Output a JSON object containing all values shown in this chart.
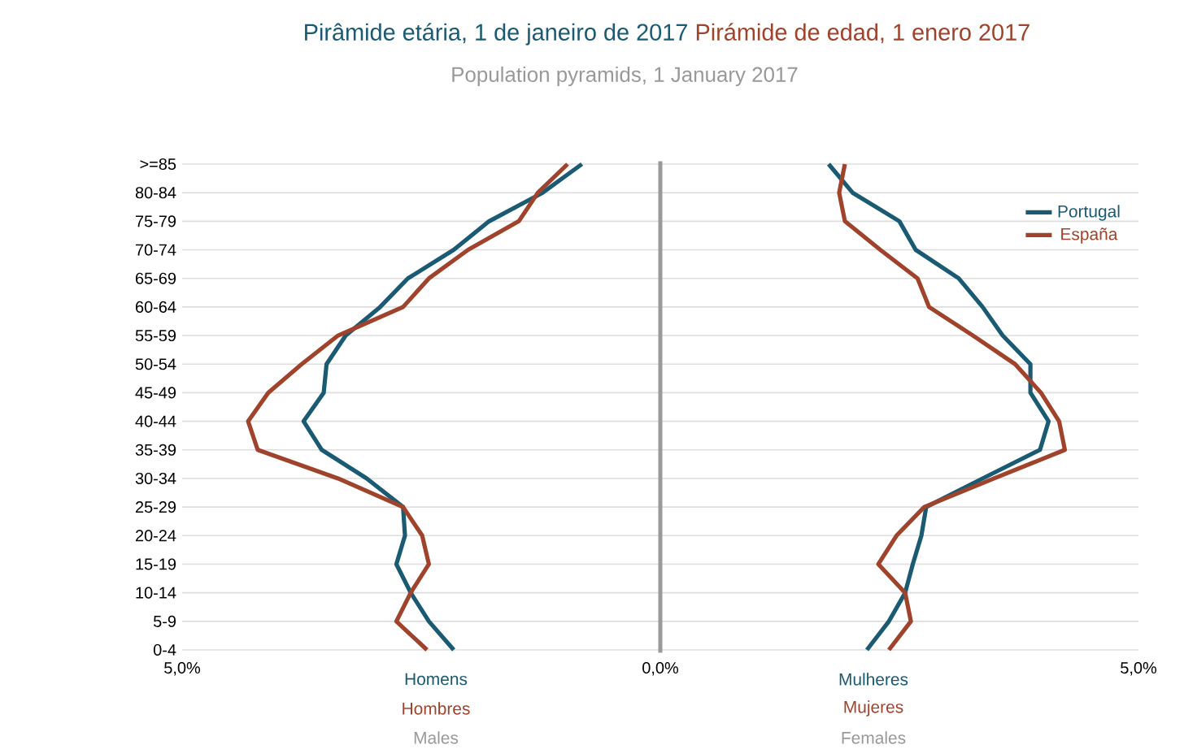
{
  "chart_data": {
    "type": "line",
    "orientation": "horizontal",
    "title": "Pirâmide etária, 1 de janeiro de 2017",
    "subtitle": "Population pyramids, 1 January 2017",
    "categories": [
      ">=85",
      "80-84",
      "75-79",
      "70-74",
      "65-69",
      "60-64",
      "55-59",
      "50-54",
      "45-49",
      "40-44",
      "35-39",
      "30-34",
      "25-29",
      "20-24",
      "15-19",
      "10-14",
      "5-9",
      "0-4"
    ],
    "series": [
      {
        "name": "Portugal",
        "color": "#1b5a73",
        "values": [
          1.76,
          2.01,
          2.5,
          2.67,
          3.12,
          3.37,
          3.58,
          3.87,
          3.87,
          4.06,
          3.97,
          3.37,
          2.78,
          2.73,
          2.64,
          2.56,
          2.39,
          2.16
        ]
      },
      {
        "color": "#1b5a73",
        "values": [
          -0.82,
          -1.23,
          -1.79,
          -2.16,
          -2.64,
          -2.93,
          -3.29,
          -3.49,
          -3.52,
          -3.73,
          -3.54,
          -3.07,
          -2.69,
          -2.67,
          -2.76,
          -2.61,
          -2.42,
          -2.16
        ]
      },
      {
        "name": "España",
        "color": "#a0432c",
        "values": [
          1.93,
          1.87,
          1.93,
          2.3,
          2.69,
          2.81,
          3.27,
          3.71,
          3.98,
          4.17,
          4.23,
          3.49,
          2.76,
          2.47,
          2.28,
          2.56,
          2.62,
          2.39
        ]
      },
      {
        "color": "#a0432c",
        "values": [
          -0.97,
          -1.28,
          -1.48,
          -2.01,
          -2.42,
          -2.69,
          -3.37,
          -3.75,
          -4.1,
          -4.31,
          -4.21,
          -3.37,
          -2.69,
          -2.49,
          -2.42,
          -2.61,
          -2.76,
          -2.44
        ]
      }
    ],
    "xlim": [
      -5,
      5
    ],
    "xticks": [
      {
        "value": -5,
        "label": "5,0%"
      },
      {
        "value": 0,
        "label": "0,0%"
      },
      {
        "value": 5,
        "label": "5,0%"
      }
    ],
    "ref_lines": [
      {
        "axis": "x",
        "value": 0,
        "color": "#9a9a9a"
      }
    ],
    "annotations": [
      "Pirámide de edad, 1 enero 2017",
      "Homens",
      "Hombres",
      "Males",
      "Mulheres",
      "Mujeres",
      "Females"
    ],
    "grid": "y",
    "legend": "top right",
    "line_style": "solid"
  }
}
